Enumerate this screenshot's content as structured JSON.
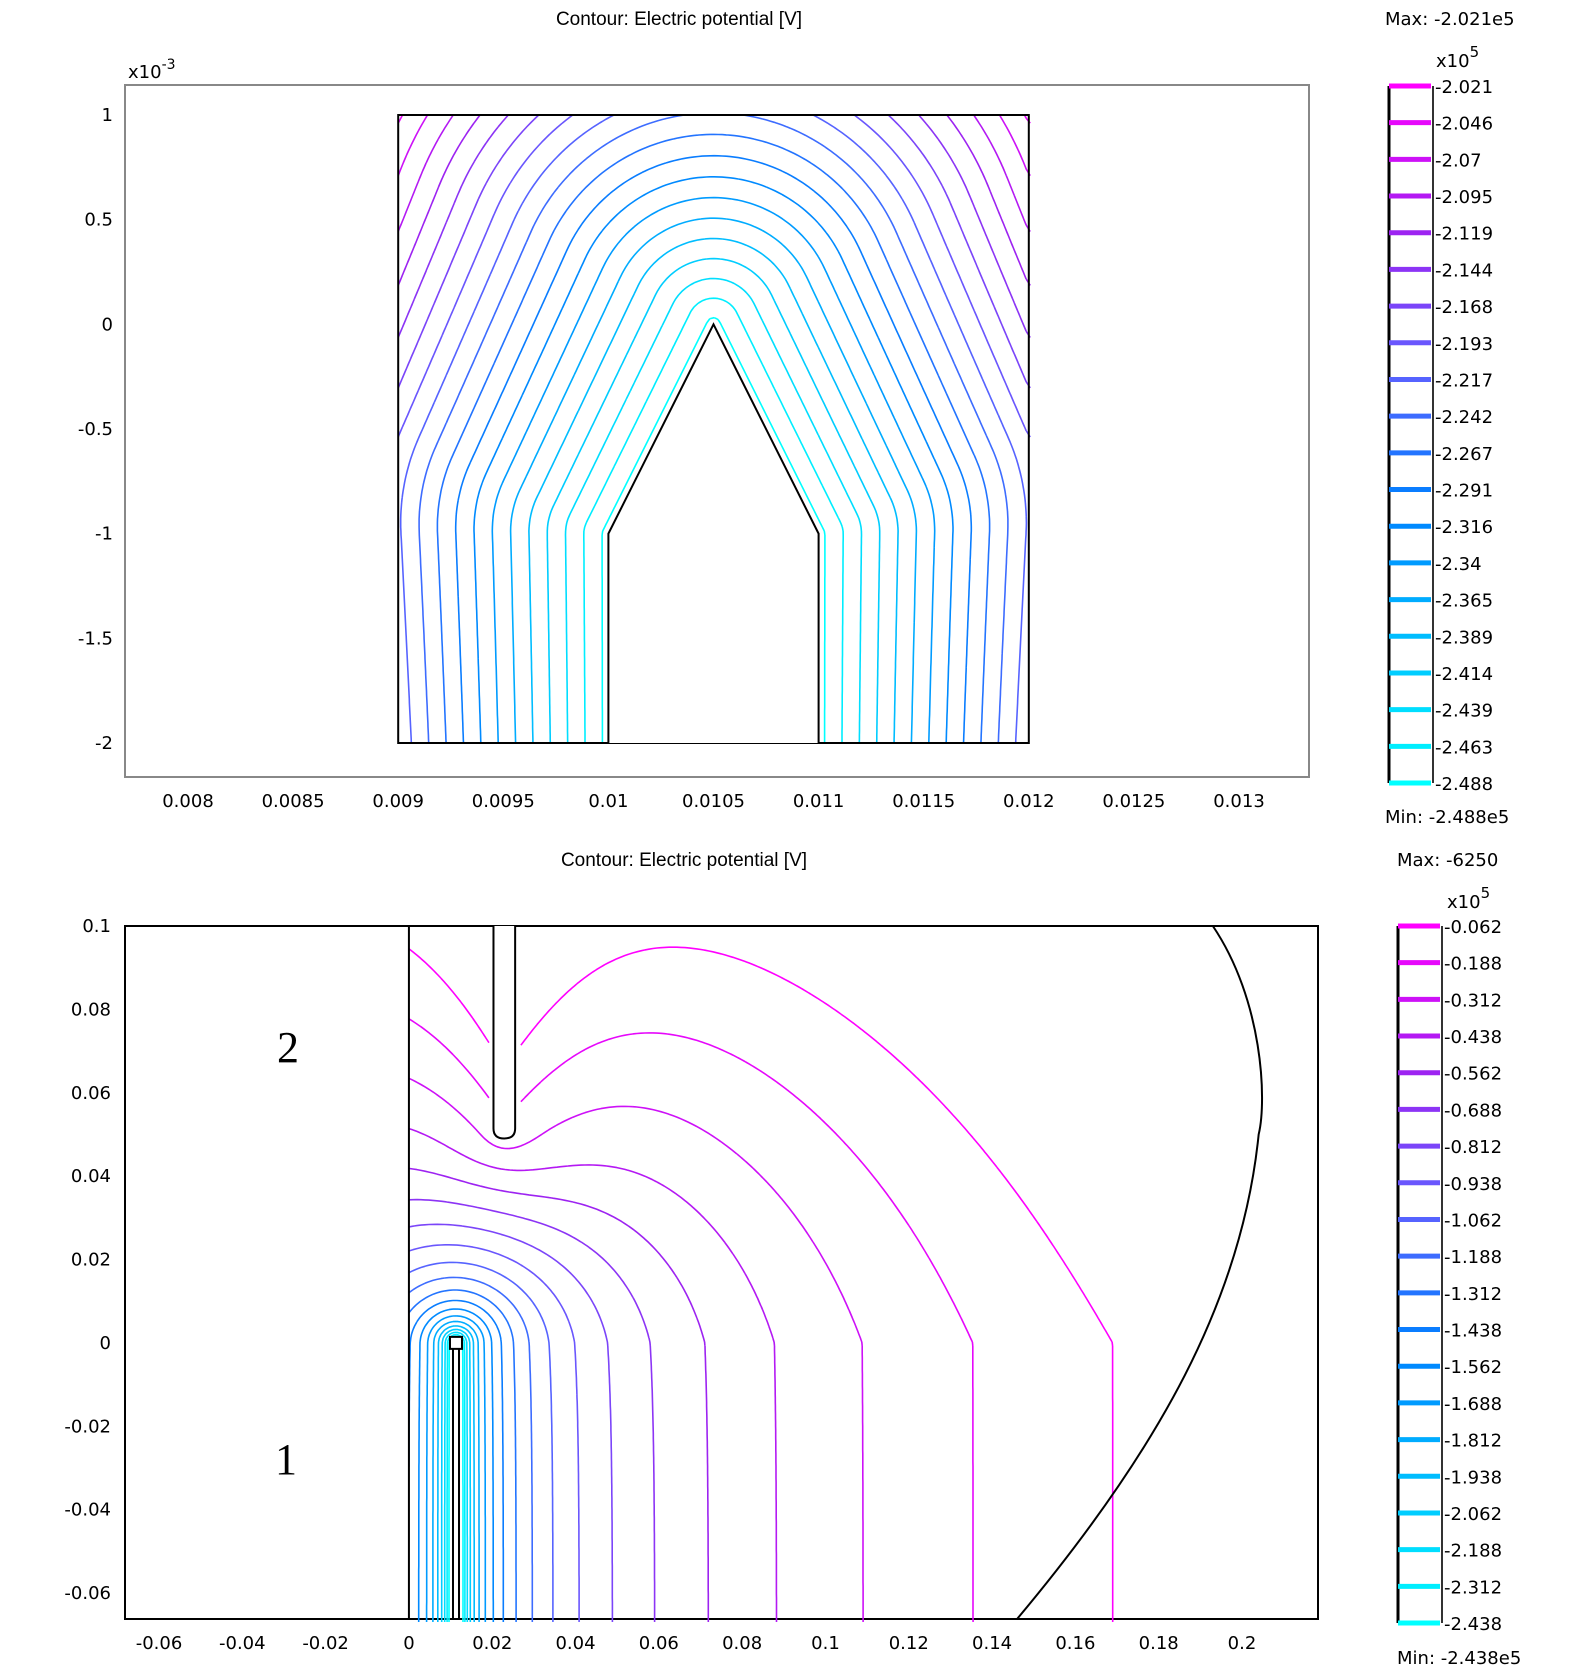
{
  "chart_data": [
    {
      "type": "contour",
      "title": "Contour: Electric potential [V]",
      "x_ticks": [
        "0.008",
        "0.0085",
        "0.009",
        "0.0095",
        "0.01",
        "0.0105",
        "0.011",
        "0.0115",
        "0.012",
        "0.0125",
        "0.013"
      ],
      "y_ticks": [
        "1",
        "0.5",
        "0",
        "-0.5",
        "-1",
        "-1.5",
        "-2"
      ],
      "y_multiplier": {
        "base": "x10",
        "exp": "-3"
      },
      "xlim": [
        0.0077,
        0.0132
      ],
      "ylim": [
        -0.00234,
        0.00113
      ],
      "domain_box": {
        "x": [
          0.009,
          0.012
        ],
        "y": [
          -0.002,
          0.001
        ]
      },
      "electrode": [
        [
          0.01,
          -0.002
        ],
        [
          0.01,
          -0.001
        ],
        [
          0.0105,
          0
        ],
        [
          0.011,
          -0.001
        ],
        [
          0.011,
          -0.002
        ]
      ],
      "colorbar": {
        "max_label": "Max: -2.021e5",
        "min_label": "Min: -2.488e5",
        "multiplier": {
          "base": "x10",
          "exp": "5"
        },
        "levels": [
          "-2.021",
          "-2.046",
          "-2.07",
          "-2.095",
          "-2.119",
          "-2.144",
          "-2.168",
          "-2.193",
          "-2.217",
          "-2.242",
          "-2.267",
          "-2.291",
          "-2.316",
          "-2.34",
          "-2.365",
          "-2.389",
          "-2.414",
          "-2.439",
          "-2.463",
          "-2.488"
        ]
      }
    },
    {
      "type": "contour",
      "title": "Contour: Electric potential [V]",
      "x_ticks": [
        "-0.06",
        "-0.04",
        "-0.02",
        "0",
        "0.02",
        "0.04",
        "0.06",
        "0.08",
        "0.1",
        "0.12",
        "0.14",
        "0.16",
        "0.18",
        "0.2"
      ],
      "y_ticks": [
        "0.1",
        "0.08",
        "0.06",
        "0.04",
        "0.02",
        "0",
        "-0.02",
        "-0.04",
        "-0.06"
      ],
      "xlim": [
        -0.068,
        0.218
      ],
      "ylim": [
        -0.066,
        0.1
      ],
      "region_labels": [
        "2",
        "1"
      ],
      "needle": {
        "x": 0.0113,
        "y": [
          -0.066,
          0
        ]
      },
      "upper_rod": {
        "x": [
          0.0203,
          0.0255
        ],
        "y": [
          0.05,
          0.1
        ]
      },
      "colorbar": {
        "max_label": "Max: -6250",
        "min_label": "Min: -2.438e5",
        "multiplier": {
          "base": "x10",
          "exp": "5"
        },
        "levels": [
          "-0.062",
          "-0.188",
          "-0.312",
          "-0.438",
          "-0.562",
          "-0.688",
          "-0.812",
          "-0.938",
          "-1.062",
          "-1.188",
          "-1.312",
          "-1.438",
          "-1.562",
          "-1.688",
          "-1.812",
          "-1.938",
          "-2.062",
          "-2.188",
          "-2.312",
          "-2.438"
        ]
      }
    }
  ],
  "colormap": [
    "#ff00ff",
    "#a020f0",
    "#6060ff",
    "#0080ff",
    "#00c0ff",
    "#00ffff"
  ]
}
